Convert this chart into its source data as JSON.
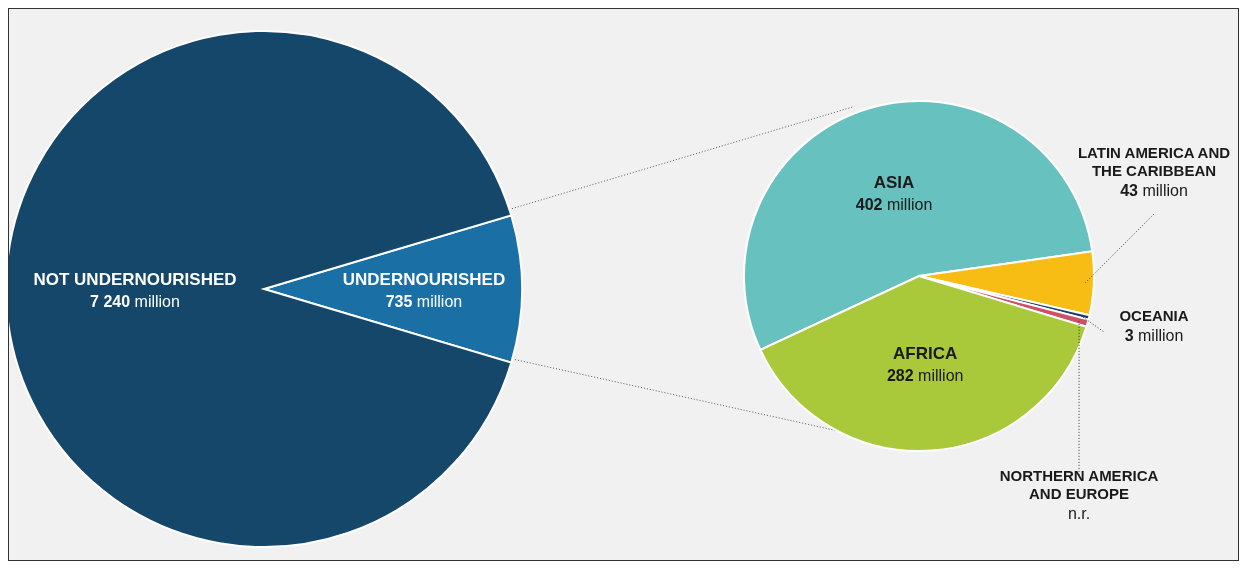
{
  "chart_data": [
    {
      "type": "pie",
      "categories": [
        "UNDERNOURISHED",
        "NOT UNDERNOURISHED"
      ],
      "values": [
        735,
        7240
      ],
      "colors": [
        "#1a6fa5",
        "#15476b"
      ],
      "value_labels": [
        "735 million",
        "7 240 million"
      ]
    },
    {
      "type": "pie",
      "categories": [
        "ASIA",
        "LATIN AMERICA AND THE CARIBBEAN",
        "OCEANIA",
        "NORTHERN AMERICA AND EUROPE",
        "AFRICA"
      ],
      "values": [
        402,
        43,
        3,
        5,
        282
      ],
      "colors": [
        "#67c1bf",
        "#f8bd14",
        "#1d3f70",
        "#d0506a",
        "#a9c83a"
      ],
      "value_labels": [
        "402 million",
        "43 million",
        "3 million",
        "n.r.",
        "282 million"
      ]
    }
  ]
}
